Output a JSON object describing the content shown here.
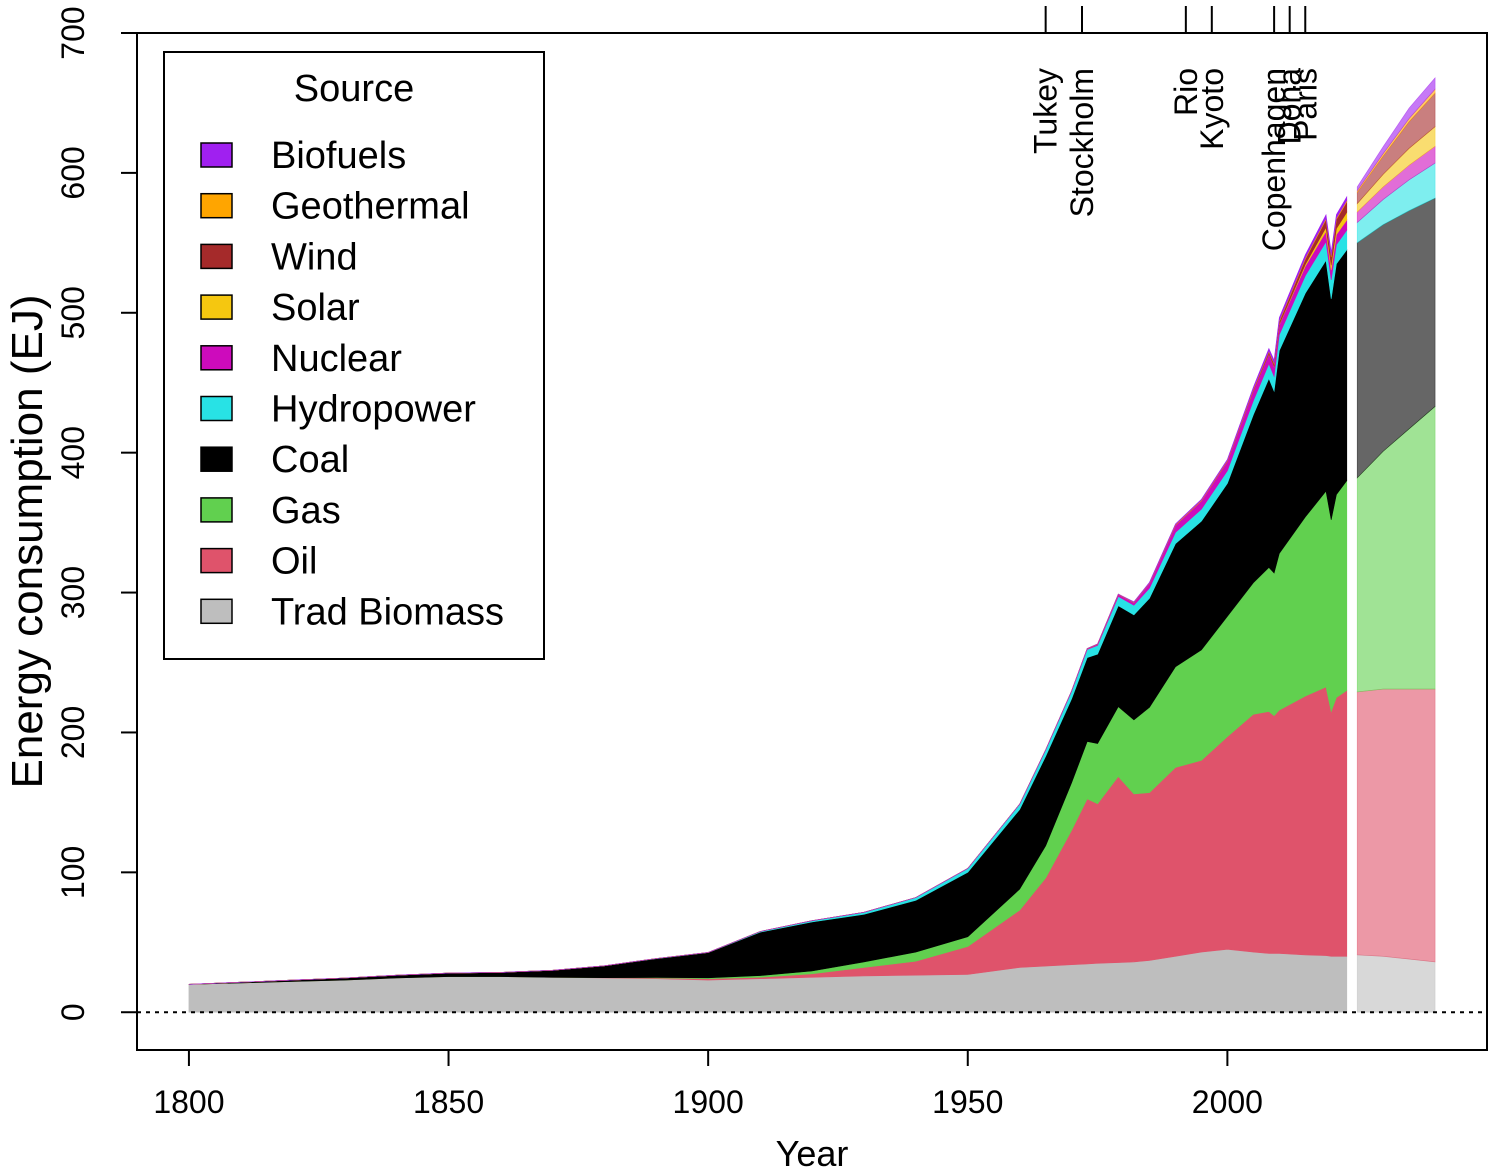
{
  "chart_data": {
    "type": "area",
    "stacked": true,
    "xlabel": "Year",
    "ylabel": "Energy consumption (EJ)",
    "xlim": [
      1790,
      2050
    ],
    "ylim": [
      -27,
      700
    ],
    "xticks": [
      1800,
      1850,
      1900,
      1950,
      2000
    ],
    "yticks": [
      0,
      100,
      200,
      300,
      400,
      500,
      600,
      700
    ],
    "zero_line": "dotted",
    "grid": false,
    "legend": {
      "title": "Source",
      "placement": "top-left",
      "entries": [
        "Biofuels",
        "Geothermal",
        "Wind",
        "Solar",
        "Nuclear",
        "Hydropower",
        "Coal",
        "Gas",
        "Oil",
        "Trad Biomass"
      ]
    },
    "colors": {
      "Trad Biomass": "#BEBEBE",
      "Oil": "#DF536B",
      "Gas": "#61D04F",
      "Coal": "#000000",
      "Hydropower": "#28E2E5",
      "Nuclear": "#CD0BBC",
      "Solar": "#F5C710",
      "Wind": "#A52A2A",
      "Geothermal": "#FFA500",
      "Biofuels": "#A020F0"
    },
    "events": [
      {
        "label": "Tukey",
        "year": 1965
      },
      {
        "label": "Stockholm",
        "year": 1972
      },
      {
        "label": "Rio",
        "year": 1992
      },
      {
        "label": "Kyoto",
        "year": 1997
      },
      {
        "label": "Copenhagen",
        "year": 2009
      },
      {
        "label": "Doha",
        "year": 2012
      },
      {
        "label": "Paris",
        "year": 2015
      }
    ],
    "x": [
      1800,
      1810,
      1820,
      1830,
      1840,
      1850,
      1860,
      1870,
      1880,
      1890,
      1900,
      1910,
      1920,
      1930,
      1940,
      1950,
      1960,
      1965,
      1970,
      1973,
      1975,
      1979,
      1982,
      1985,
      1990,
      1995,
      2000,
      2005,
      2008,
      2009,
      2010,
      2015,
      2019,
      2020,
      2021,
      2023
    ],
    "series": [
      {
        "name": "Trad Biomass",
        "values": [
          20,
          21,
          22,
          23,
          24.5,
          25.5,
          25.5,
          25,
          24.5,
          24,
          23,
          24,
          25,
          26,
          26.5,
          27,
          32,
          33,
          34,
          34.5,
          35,
          35.5,
          36,
          37,
          40,
          43,
          45,
          43,
          42,
          42,
          42,
          41,
          40.5,
          40,
          40,
          40
        ]
      },
      {
        "name": "Oil",
        "values": [
          0,
          0,
          0,
          0,
          0,
          0,
          0,
          0,
          0.2,
          0.5,
          1,
          1,
          2.5,
          6,
          10,
          20,
          41,
          63,
          96,
          118,
          114,
          133,
          120,
          120,
          135,
          137,
          152,
          170,
          173,
          170,
          174,
          185,
          192,
          175,
          185,
          190
        ]
      },
      {
        "name": "Gas",
        "values": [
          0,
          0,
          0,
          0,
          0,
          0,
          0,
          0,
          0,
          0.3,
          0.6,
          1.2,
          2,
          4,
          6.5,
          7,
          15,
          23,
          34,
          41,
          43,
          50,
          53,
          61,
          72,
          79,
          86,
          94,
          103,
          102,
          112,
          128,
          140,
          137,
          145,
          150
        ]
      },
      {
        "name": "Coal",
        "values": [
          0,
          0.5,
          1,
          1.5,
          2,
          2.5,
          3,
          5,
          8.5,
          13.5,
          18,
          31,
          35,
          34,
          37,
          46,
          57,
          64,
          60,
          60,
          64,
          72,
          75,
          78,
          88,
          92,
          95,
          120,
          135,
          130,
          145,
          160,
          165,
          158,
          165,
          165
        ]
      },
      {
        "name": "Hydropower",
        "values": [
          0,
          0,
          0,
          0,
          0,
          0,
          0,
          0,
          0,
          0.1,
          0.2,
          0.5,
          0.9,
          1.4,
          2,
          2.8,
          3.8,
          4.5,
          5.3,
          5.8,
          6.2,
          6.7,
          6.9,
          7.2,
          8,
          8.6,
          9.1,
          10,
          10.5,
          10.6,
          11.3,
          12.5,
          13.3,
          13.5,
          13.7,
          14
        ]
      },
      {
        "name": "Nuclear",
        "values": [
          0,
          0,
          0,
          0,
          0,
          0,
          0,
          0,
          0,
          0,
          0,
          0,
          0,
          0,
          0,
          0,
          0,
          0.1,
          0.3,
          0.6,
          0.9,
          1.5,
          2,
          3.5,
          5.2,
          6,
          6.7,
          7.3,
          7.2,
          7.1,
          7.2,
          6.8,
          7.3,
          7,
          7.2,
          7.3
        ]
      },
      {
        "name": "Solar",
        "values": [
          0,
          0,
          0,
          0,
          0,
          0,
          0,
          0,
          0,
          0,
          0,
          0,
          0,
          0,
          0,
          0,
          0,
          0,
          0,
          0,
          0,
          0,
          0,
          0,
          0,
          0,
          0,
          0,
          0.1,
          0.2,
          0.3,
          1.3,
          3,
          3.5,
          4.3,
          5.5
        ]
      },
      {
        "name": "Wind",
        "values": [
          0,
          0,
          0,
          0,
          0,
          0,
          0,
          0,
          0,
          0,
          0,
          0,
          0,
          0,
          0,
          0,
          0,
          0,
          0,
          0,
          0,
          0,
          0,
          0,
          0.1,
          0.1,
          0.3,
          0.6,
          1.3,
          1.6,
          2,
          3.8,
          5.6,
          6,
          6.6,
          7.5
        ]
      },
      {
        "name": "Geothermal",
        "values": [
          0,
          0,
          0,
          0,
          0,
          0,
          0,
          0,
          0,
          0,
          0,
          0,
          0,
          0,
          0,
          0,
          0,
          0.1,
          0.1,
          0.1,
          0.2,
          0.2,
          0.3,
          0.3,
          0.4,
          0.5,
          0.5,
          0.6,
          0.6,
          0.6,
          0.7,
          0.8,
          0.9,
          0.9,
          0.9,
          1
        ]
      },
      {
        "name": "Biofuels",
        "values": [
          0,
          0,
          0,
          0,
          0,
          0,
          0,
          0,
          0,
          0,
          0,
          0,
          0,
          0,
          0,
          0,
          0,
          0,
          0,
          0,
          0,
          0,
          0.2,
          0.3,
          0.4,
          0.5,
          0.6,
          1.2,
          1.8,
          1.9,
          2,
          2.2,
          2.4,
          2.3,
          2.5,
          2.6
        ]
      }
    ],
    "projection": {
      "x": [
        2025,
        2030,
        2035,
        2040
      ],
      "series": [
        {
          "name": "Trad Biomass",
          "values": [
            41,
            40,
            38,
            36
          ]
        },
        {
          "name": "Oil",
          "values": [
            188,
            191,
            193,
            195
          ]
        },
        {
          "name": "Gas",
          "values": [
            153,
            170,
            186,
            202
          ]
        },
        {
          "name": "Coal",
          "values": [
            168,
            162,
            156,
            149
          ]
        },
        {
          "name": "Hydropower",
          "values": [
            14.5,
            18,
            22,
            25
          ]
        },
        {
          "name": "Nuclear",
          "values": [
            7.5,
            9,
            10.5,
            12
          ]
        },
        {
          "name": "Solar",
          "values": [
            6,
            9,
            12,
            14
          ]
        },
        {
          "name": "Wind",
          "values": [
            8,
            13,
            19,
            24
          ]
        },
        {
          "name": "Geothermal",
          "values": [
            1.2,
            1.8,
            2.3,
            2.8
          ]
        },
        {
          "name": "Biofuels",
          "values": [
            2.8,
            5,
            7.5,
            8.2
          ]
        }
      ]
    }
  }
}
